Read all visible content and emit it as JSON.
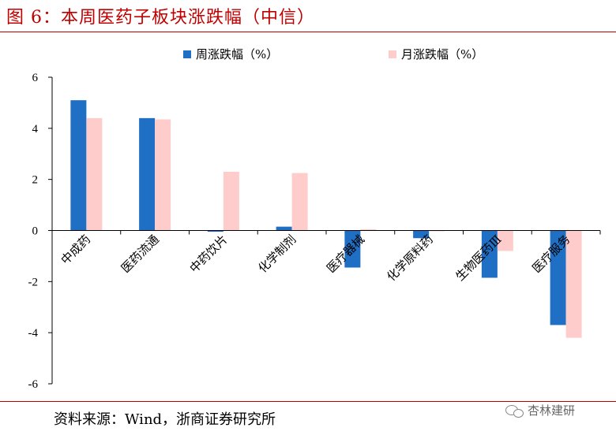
{
  "figure": {
    "title": "图 6：本周医药子板块涨跌幅（中信）",
    "source": "资料来源：Wind，浙商证券研究所",
    "watermark": "杏林建研"
  },
  "colors": {
    "weekly": "#1f6fc5",
    "monthly": "#ffcccc",
    "rule": "#c00000"
  },
  "chart_data": {
    "type": "bar",
    "categories": [
      "中成药",
      "医药流通",
      "中药饮片",
      "化学制剂",
      "医疗器械",
      "化学原料药",
      "生物医药Ⅲ",
      "医疗服务"
    ],
    "series": [
      {
        "name": "周涨跌幅（%）",
        "values": [
          5.1,
          4.4,
          -0.05,
          0.15,
          -1.45,
          -0.3,
          -1.85,
          -3.7
        ]
      },
      {
        "name": "月涨跌幅（%）",
        "values": [
          4.4,
          4.35,
          2.3,
          2.25,
          0.05,
          0.0,
          -0.8,
          -4.2
        ]
      }
    ],
    "ylim": [
      -6,
      6
    ],
    "yticks": [
      6,
      4,
      2,
      0,
      -2,
      -4,
      -6
    ],
    "legend": "top",
    "grid": false
  }
}
